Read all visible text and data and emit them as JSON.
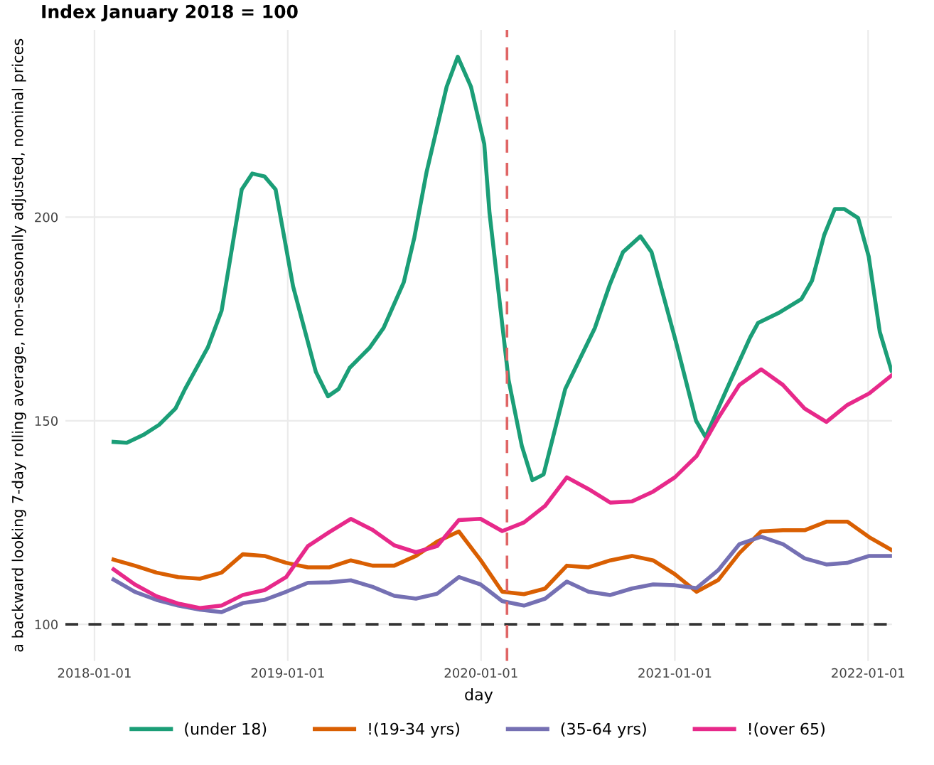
{
  "chart_data": {
    "type": "line",
    "title": "Index January 2018 = 100",
    "xlabel": "day",
    "ylabel": "a backward looking 7-day rolling average, non-seasonally adjusted, nominal prices",
    "xlim": [
      "2017-11-07",
      "2022-02-15"
    ],
    "ylim": [
      91,
      246
    ],
    "xticks": [
      {
        "value": "2018-01-01",
        "label": "2018-01-01"
      },
      {
        "value": "2019-01-01",
        "label": "2019-01-01"
      },
      {
        "value": "2020-01-01",
        "label": "2020-01-01"
      },
      {
        "value": "2021-01-01",
        "label": "2021-01-01"
      },
      {
        "value": "2022-01-01",
        "label": "2022-01-01"
      }
    ],
    "yticks": [
      100,
      150,
      200
    ],
    "grid": true,
    "legend": "bottom",
    "line_style": "solid",
    "marker": "none",
    "x": [
      "2018-02-06",
      "2018-03-18",
      "2018-04-28",
      "2018-06-08",
      "2018-07-19",
      "2018-08-29",
      "2018-10-08",
      "2018-11-18",
      "2018-12-29",
      "2019-02-08",
      "2019-03-21",
      "2019-04-30",
      "2019-06-10",
      "2019-07-21",
      "2019-08-31",
      "2019-10-10",
      "2019-11-20",
      "2019-12-31",
      "2020-02-10",
      "2020-03-22",
      "2020-05-01",
      "2020-06-11",
      "2020-07-22",
      "2020-09-01",
      "2020-10-12",
      "2020-11-21",
      "2021-01-01",
      "2021-02-11",
      "2021-03-24",
      "2021-05-03",
      "2021-06-13",
      "2021-07-24",
      "2021-09-03",
      "2021-10-14",
      "2021-11-23",
      "2022-01-03",
      "2022-02-15"
    ],
    "series": [
      {
        "name": "(under 18)",
        "color": "#1b9e77",
        "x": [
          "2018-02-06",
          "2018-03-03",
          "2018-04-03",
          "2018-05-03",
          "2018-06-03",
          "2018-06-21",
          "2018-08-03",
          "2018-08-29",
          "2018-10-06",
          "2018-10-26",
          "2018-11-18",
          "2018-12-09",
          "2019-01-11",
          "2019-02-23",
          "2019-03-18",
          "2019-04-07",
          "2019-04-28",
          "2019-06-05",
          "2019-07-01",
          "2019-08-08",
          "2019-08-28",
          "2019-09-20",
          "2019-10-28",
          "2019-11-18",
          "2019-12-13",
          "2020-01-07",
          "2020-01-17",
          "2020-02-22",
          "2020-03-18",
          "2020-04-07",
          "2020-04-28",
          "2020-06-08",
          "2020-08-03",
          "2020-08-31",
          "2020-09-25",
          "2020-10-28",
          "2020-11-18",
          "2021-01-03",
          "2021-02-10",
          "2021-02-28",
          "2021-04-15",
          "2021-05-23",
          "2021-06-07",
          "2021-07-15",
          "2021-08-28",
          "2021-09-17",
          "2021-10-10",
          "2021-10-30",
          "2021-11-17",
          "2021-12-13",
          "2022-01-02",
          "2022-01-23",
          "2022-02-14"
        ],
        "values": [
          144.8,
          144.6,
          146.5,
          149,
          153,
          157.8,
          168,
          177,
          206.8,
          210.7,
          210,
          206.8,
          183,
          162,
          156,
          157.8,
          163,
          168,
          172.8,
          184,
          195,
          211,
          232,
          239.4,
          232,
          218,
          201,
          160,
          143.8,
          135.4,
          136.8,
          157.8,
          172.8,
          183.4,
          191.4,
          195.3,
          191.4,
          169.4,
          150,
          146,
          159.5,
          170.4,
          174,
          176.4,
          179.9,
          184.4,
          195.6,
          202,
          202,
          199.8,
          190.4,
          171.8,
          162.3
        ]
      },
      {
        "name": "!(19-34 yrs)",
        "color": "#d95f02",
        "values": [
          115.9,
          114.4,
          112.7,
          111.6,
          111.2,
          112.7,
          117.2,
          116.8,
          115.1,
          114,
          114,
          115.7,
          114.4,
          114.4,
          116.8,
          120.3,
          122.8,
          115.8,
          108,
          107.4,
          108.8,
          114.4,
          114,
          115.7,
          116.8,
          115.7,
          112.3,
          108,
          110.9,
          117.5,
          122.8,
          123.1,
          123.1,
          125.2,
          125.2,
          121.4,
          118.2
        ]
      },
      {
        "name": "(35-64 yrs)",
        "color": "#7570b3",
        "values": [
          111,
          108,
          106,
          104.6,
          103.6,
          103,
          105.2,
          106,
          108,
          110.2,
          110.3,
          110.8,
          109.2,
          107,
          106.3,
          107.5,
          111.6,
          109.8,
          105.7,
          104.6,
          106.3,
          110.5,
          108,
          107.2,
          108.8,
          109.8,
          109.6,
          108.9,
          113.3,
          119.7,
          121.5,
          119.7,
          116.2,
          114.7,
          115.1,
          116.8,
          116.8
        ]
      },
      {
        "name": "!(over 65)",
        "color": "#e7298a",
        "values": [
          113.5,
          109.8,
          106.9,
          105.1,
          104,
          104.6,
          107.2,
          108.4,
          111.6,
          119.2,
          122.7,
          125.9,
          123.2,
          119.4,
          117.7,
          119.2,
          125.6,
          125.9,
          122.9,
          125,
          129.1,
          136.1,
          133.2,
          129.9,
          130.2,
          132.6,
          136.1,
          141.3,
          150.7,
          158.8,
          162.6,
          158.8,
          153,
          149.7,
          153.9,
          156.7,
          161.2
        ]
      }
    ],
    "ref_lines": [
      {
        "axis": "y",
        "value": 100,
        "label": null,
        "color": "#333333",
        "line_style": "dashed"
      },
      {
        "axis": "x",
        "value": "2020-02-19",
        "label": null,
        "color": "#e06666",
        "line_style": "dashed"
      }
    ]
  }
}
